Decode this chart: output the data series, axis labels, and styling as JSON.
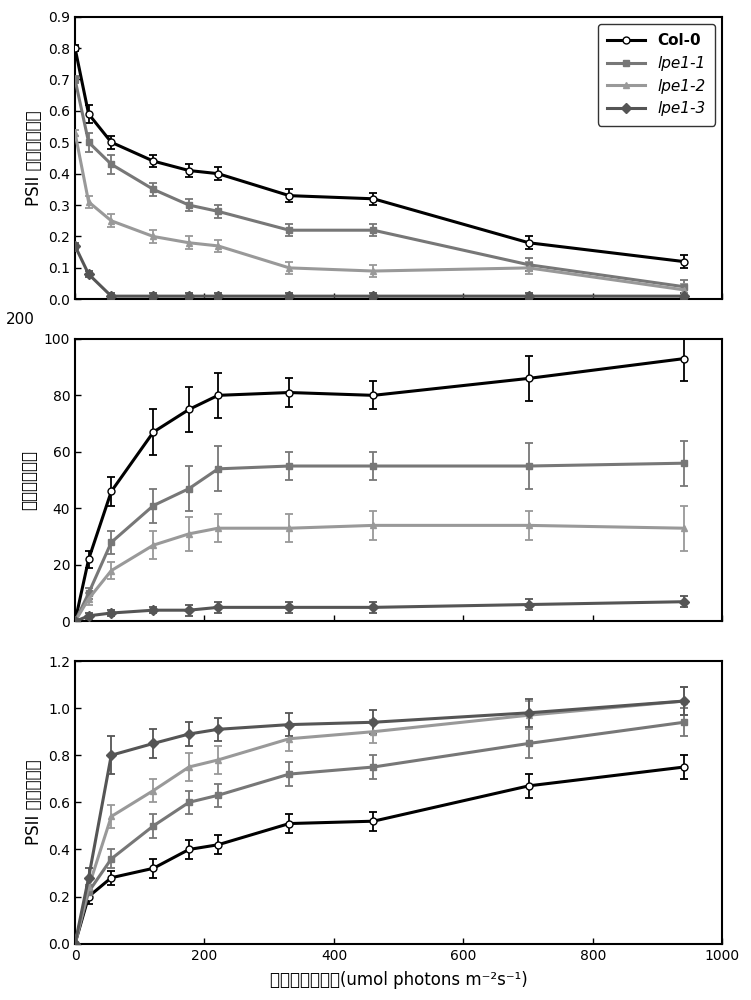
{
  "x": [
    0,
    21,
    56,
    121,
    176,
    221,
    331,
    461,
    701,
    941
  ],
  "panel1_ylabel": "PSII 有效量子产量",
  "panel1_ylim": [
    0,
    0.9
  ],
  "panel1_yticks": [
    0,
    0.1,
    0.2,
    0.3,
    0.4,
    0.5,
    0.6,
    0.7,
    0.8,
    0.9
  ],
  "panel1_col0_y": [
    0.8,
    0.59,
    0.5,
    0.44,
    0.41,
    0.4,
    0.33,
    0.32,
    0.18,
    0.12
  ],
  "panel1_lpe11_y": [
    0.7,
    0.5,
    0.43,
    0.35,
    0.3,
    0.28,
    0.22,
    0.22,
    0.11,
    0.04
  ],
  "panel1_lpe12_y": [
    0.53,
    0.31,
    0.25,
    0.2,
    0.18,
    0.17,
    0.1,
    0.09,
    0.1,
    0.03
  ],
  "panel1_lpe13_y": [
    0.17,
    0.08,
    0.01,
    0.01,
    0.01,
    0.01,
    0.01,
    0.01,
    0.01,
    0.01
  ],
  "panel1_col0_err": [
    0.01,
    0.03,
    0.02,
    0.02,
    0.02,
    0.02,
    0.02,
    0.02,
    0.02,
    0.02
  ],
  "panel1_lpe11_err": [
    0.01,
    0.03,
    0.03,
    0.02,
    0.02,
    0.02,
    0.02,
    0.02,
    0.02,
    0.02
  ],
  "panel1_lpe12_err": [
    0.01,
    0.02,
    0.02,
    0.02,
    0.02,
    0.02,
    0.02,
    0.02,
    0.02,
    0.02
  ],
  "panel1_lpe13_err": [
    0.01,
    0.01,
    0.01,
    0.01,
    0.01,
    0.01,
    0.01,
    0.01,
    0.01,
    0.01
  ],
  "panel2_ylabel": "电子传递速率",
  "panel2_ylim": [
    0,
    100
  ],
  "panel2_yticks": [
    0,
    20,
    40,
    60,
    80,
    100
  ],
  "panel2_col0_y": [
    0,
    22,
    46,
    67,
    75,
    80,
    81,
    80,
    86,
    93
  ],
  "panel2_lpe11_y": [
    0,
    10,
    28,
    41,
    47,
    54,
    55,
    55,
    55,
    56
  ],
  "panel2_lpe12_y": [
    0,
    8,
    18,
    27,
    31,
    33,
    33,
    34,
    34,
    33
  ],
  "panel2_lpe13_y": [
    0,
    2,
    3,
    4,
    4,
    5,
    5,
    5,
    6,
    7
  ],
  "panel2_col0_err": [
    0,
    3,
    5,
    8,
    8,
    8,
    5,
    5,
    8,
    8
  ],
  "panel2_lpe11_err": [
    0,
    2,
    4,
    6,
    8,
    8,
    5,
    5,
    8,
    8
  ],
  "panel2_lpe12_err": [
    0,
    2,
    3,
    5,
    6,
    5,
    5,
    5,
    5,
    8
  ],
  "panel2_lpe13_err": [
    0,
    1,
    1,
    1,
    2,
    2,
    2,
    2,
    2,
    2
  ],
  "panel3_ylabel": "PSII 的闭合程度",
  "panel3_ylim": [
    0,
    1.2
  ],
  "panel3_yticks": [
    0,
    0.2,
    0.4,
    0.6,
    0.8,
    1.0,
    1.2
  ],
  "panel3_col0_y": [
    0,
    0.2,
    0.28,
    0.32,
    0.4,
    0.42,
    0.51,
    0.52,
    0.67,
    0.75
  ],
  "panel3_lpe11_y": [
    0,
    0.22,
    0.36,
    0.5,
    0.6,
    0.63,
    0.72,
    0.75,
    0.85,
    0.94
  ],
  "panel3_lpe12_y": [
    0,
    0.24,
    0.54,
    0.65,
    0.75,
    0.78,
    0.87,
    0.9,
    0.97,
    1.03
  ],
  "panel3_lpe13_y": [
    0,
    0.28,
    0.8,
    0.85,
    0.89,
    0.91,
    0.93,
    0.94,
    0.98,
    1.03
  ],
  "panel3_col0_err": [
    0,
    0.03,
    0.03,
    0.04,
    0.04,
    0.04,
    0.04,
    0.04,
    0.05,
    0.05
  ],
  "panel3_lpe11_err": [
    0,
    0.03,
    0.04,
    0.05,
    0.05,
    0.05,
    0.05,
    0.05,
    0.06,
    0.06
  ],
  "panel3_lpe12_err": [
    0,
    0.04,
    0.05,
    0.05,
    0.06,
    0.06,
    0.05,
    0.05,
    0.06,
    0.06
  ],
  "panel3_lpe13_err": [
    0,
    0.04,
    0.08,
    0.06,
    0.05,
    0.05,
    0.05,
    0.05,
    0.06,
    0.06
  ],
  "xlabel": "光量子通量密度(umol photons m⁻²s⁻¹)",
  "xlim": [
    0,
    1000
  ],
  "xticks": [
    0,
    200,
    400,
    600,
    800,
    1000
  ],
  "col0_color": "#000000",
  "lpe11_color": "#777777",
  "lpe12_color": "#999999",
  "lpe13_color": "#555555",
  "legend_labels": [
    "Col-0",
    "lpe1-1",
    "lpe1-2",
    "lpe1-3"
  ],
  "linewidth": 2.2,
  "markersize": 5,
  "capsize": 3,
  "panel2_top_label": "200"
}
